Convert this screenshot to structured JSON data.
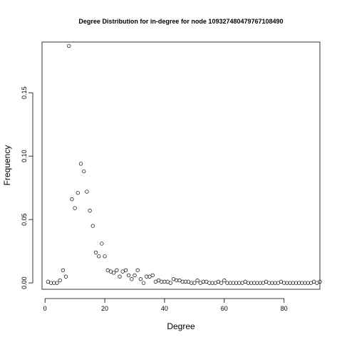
{
  "chart_data": {
    "type": "scatter",
    "title": "Degree Distribution for in-degree for node 109327480479767108490",
    "xlabel": "Degree",
    "ylabel": "Frequency",
    "xlim": [
      -1,
      92
    ],
    "ylim": [
      -0.005,
      0.19
    ],
    "xticks": [
      0,
      20,
      40,
      60,
      80
    ],
    "xtick_labels": [
      "0",
      "20",
      "40",
      "60",
      "80"
    ],
    "yticks": [
      0.0,
      0.05,
      0.1,
      0.15
    ],
    "ytick_labels": [
      "0.00",
      "0.05",
      "0.10",
      "0.15"
    ],
    "grid": false,
    "marker": "open-circle",
    "points": [
      [
        1,
        0.001
      ],
      [
        2,
        0.0
      ],
      [
        3,
        0.0
      ],
      [
        4,
        0.0
      ],
      [
        5,
        0.002
      ],
      [
        6,
        0.01
      ],
      [
        7,
        0.005
      ],
      [
        8,
        0.187
      ],
      [
        9,
        0.066
      ],
      [
        10,
        0.059
      ],
      [
        11,
        0.071
      ],
      [
        12,
        0.094
      ],
      [
        13,
        0.088
      ],
      [
        14,
        0.072
      ],
      [
        15,
        0.057
      ],
      [
        16,
        0.045
      ],
      [
        17,
        0.024
      ],
      [
        18,
        0.021
      ],
      [
        19,
        0.031
      ],
      [
        20,
        0.021
      ],
      [
        21,
        0.01
      ],
      [
        22,
        0.009
      ],
      [
        23,
        0.008
      ],
      [
        24,
        0.01
      ],
      [
        25,
        0.005
      ],
      [
        26,
        0.009
      ],
      [
        27,
        0.01
      ],
      [
        28,
        0.006
      ],
      [
        29,
        0.003
      ],
      [
        30,
        0.006
      ],
      [
        31,
        0.01
      ],
      [
        32,
        0.003
      ],
      [
        33,
        0.0
      ],
      [
        34,
        0.005
      ],
      [
        35,
        0.005
      ],
      [
        36,
        0.006
      ],
      [
        37,
        0.001
      ],
      [
        38,
        0.002
      ],
      [
        39,
        0.001
      ],
      [
        40,
        0.001
      ],
      [
        41,
        0.001
      ],
      [
        42,
        0.0
      ],
      [
        43,
        0.003
      ],
      [
        44,
        0.002
      ],
      [
        45,
        0.002
      ],
      [
        46,
        0.001
      ],
      [
        47,
        0.001
      ],
      [
        48,
        0.001
      ],
      [
        49,
        0.0
      ],
      [
        50,
        0.0
      ],
      [
        51,
        0.002
      ],
      [
        52,
        0.0
      ],
      [
        53,
        0.001
      ],
      [
        54,
        0.001
      ],
      [
        55,
        0.0
      ],
      [
        56,
        0.0
      ],
      [
        57,
        0.0
      ],
      [
        58,
        0.001
      ],
      [
        59,
        0.0
      ],
      [
        60,
        0.002
      ],
      [
        61,
        0.0
      ],
      [
        62,
        0.0
      ],
      [
        63,
        0.0
      ],
      [
        64,
        0.0
      ],
      [
        65,
        0.0
      ],
      [
        66,
        0.0
      ],
      [
        67,
        0.001
      ],
      [
        68,
        0.0
      ],
      [
        69,
        0.0
      ],
      [
        70,
        0.0
      ],
      [
        71,
        0.0
      ],
      [
        72,
        0.0
      ],
      [
        73,
        0.0
      ],
      [
        74,
        0.001
      ],
      [
        75,
        0.0
      ],
      [
        76,
        0.0
      ],
      [
        77,
        0.0
      ],
      [
        78,
        0.0
      ],
      [
        79,
        0.001
      ],
      [
        80,
        0.0
      ],
      [
        81,
        0.0
      ],
      [
        82,
        0.0
      ],
      [
        83,
        0.0
      ],
      [
        84,
        0.0
      ],
      [
        85,
        0.0
      ],
      [
        86,
        0.0
      ],
      [
        87,
        0.0
      ],
      [
        88,
        0.0
      ],
      [
        89,
        0.0
      ],
      [
        90,
        0.001
      ],
      [
        91,
        0.0
      ],
      [
        92,
        0.001
      ]
    ]
  }
}
